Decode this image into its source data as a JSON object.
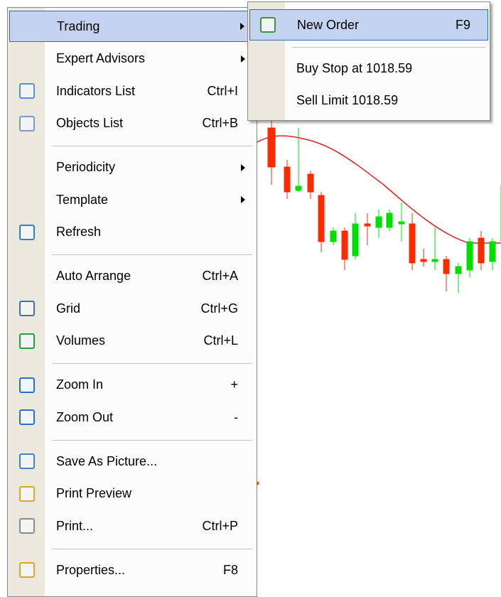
{
  "menu": {
    "groups": [
      [
        {
          "label": "Trading",
          "submenu": true
        },
        {
          "label": "Expert Advisors",
          "submenu": true
        },
        {
          "label": "Indicators List",
          "shortcut": "Ctrl+I"
        },
        {
          "label": "Objects List",
          "shortcut": "Ctrl+B"
        }
      ],
      [
        {
          "label": "Periodicity",
          "submenu": true
        },
        {
          "label": "Template",
          "submenu": true
        },
        {
          "label": "Refresh"
        }
      ],
      [
        {
          "label": "Auto Arrange",
          "shortcut": "Ctrl+A"
        },
        {
          "label": "Grid",
          "shortcut": "Ctrl+G"
        },
        {
          "label": "Volumes",
          "shortcut": "Ctrl+L"
        }
      ],
      [
        {
          "label": "Zoom In",
          "shortcut": "+"
        },
        {
          "label": "Zoom Out",
          "shortcut": "-"
        }
      ],
      [
        {
          "label": "Save As Picture..."
        },
        {
          "label": "Print Preview"
        },
        {
          "label": "Print...",
          "shortcut": "Ctrl+P"
        }
      ],
      [
        {
          "label": "Properties...",
          "shortcut": "F8"
        }
      ]
    ]
  },
  "submenu": {
    "groups": [
      [
        {
          "label": "New Order",
          "shortcut": "F9"
        }
      ],
      [
        {
          "label": "Buy Stop at 1018.59"
        },
        {
          "label": "Sell Limit 1018.59"
        }
      ]
    ]
  }
}
